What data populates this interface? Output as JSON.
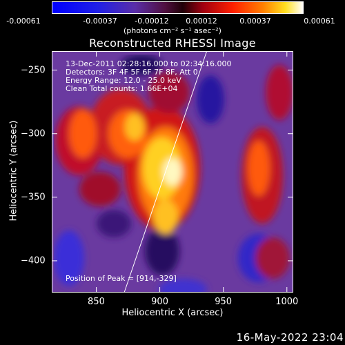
{
  "colorbar": {
    "ticks": [
      "-0.00061",
      "-0.00037",
      "-0.00012",
      "0.00012",
      "0.00037",
      "0.00061"
    ],
    "units": "(photons cm⁻² s⁻¹ asec⁻²)"
  },
  "info": {
    "time": "13-Dec-2011 02:28:16.000 to 02:34:16.000",
    "detectors": "Detectors: 3F 4F 5F 6F 7F 8F, Att 0",
    "energy": "Energy Range: 12.0 - 25.0 keV",
    "algorithm": "Clean     Total counts: 1.66E+04",
    "peak": "Position of Peak = [914,-329]"
  },
  "timestamp": "16-May-2022 23:04",
  "chart_data": {
    "type": "heatmap",
    "title": "Reconstructed RHESSI Image",
    "xlabel": "Heliocentric X (arcsec)",
    "ylabel": "Heliocentric Y (arcsec)",
    "xlim": [
      815,
      1005
    ],
    "ylim": [
      -425,
      -235
    ],
    "xticks": [
      850,
      900,
      950,
      1000
    ],
    "yticks": [
      -250,
      -300,
      -350,
      -400
    ],
    "colorscale_range": [
      -0.00061,
      0.00061
    ],
    "peak_position": [
      914,
      -329
    ],
    "limb_line": [
      [
        872,
        -425
      ],
      [
        937,
        -235
      ]
    ]
  }
}
